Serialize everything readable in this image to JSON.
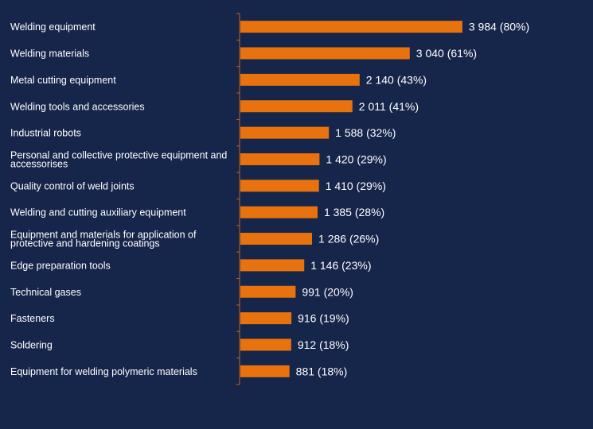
{
  "colors": {
    "background": "#16254a",
    "bar": "#e8730e",
    "axis": "#c0651a",
    "text": "#ffffff"
  },
  "chart_data": {
    "type": "bar",
    "orientation": "horizontal",
    "categories": [
      "Welding equipment",
      "Welding materials",
      "Metal cutting equipment",
      "Welding tools and accessories",
      "Industrial robots",
      "Personal and collective protective equipment and accessorises",
      "Quality control of weld joints",
      "Welding and cutting auxiliary equipment",
      "Equipment and materials for application of protective and hardening coatings",
      "Edge preparation tools",
      "Technical gases",
      "Fasteners",
      "Soldering",
      "Equipment for welding polymeric materials"
    ],
    "category_lines": [
      [
        "Welding equipment"
      ],
      [
        "Welding materials"
      ],
      [
        "Metal cutting equipment"
      ],
      [
        "Welding tools and accessories"
      ],
      [
        "Industrial robots"
      ],
      [
        "Personal and collective protective equipment and",
        "accessorises"
      ],
      [
        "Quality control of weld joints"
      ],
      [
        "Welding and cutting auxiliary equipment"
      ],
      [
        "Equipment and materials for application of",
        "protective and hardening coatings"
      ],
      [
        "Edge preparation tools"
      ],
      [
        "Technical gases"
      ],
      [
        "Fasteners"
      ],
      [
        "Soldering"
      ],
      [
        "Equipment for welding polymeric materials"
      ]
    ],
    "values": [
      3984,
      3040,
      2140,
      2011,
      1588,
      1420,
      1410,
      1385,
      1286,
      1146,
      991,
      916,
      912,
      881
    ],
    "value_labels": [
      "3 984 (80%)",
      "3 040 (61%)",
      "2 140 (43%)",
      "2 011 (41%)",
      "1 588 (32%)",
      "1 420 (29%)",
      "1 410 (29%)",
      "1 385 (28%)",
      "1 286 (26%)",
      "1 146 (23%)",
      "991 (20%)",
      "916 (19%)",
      "912 (18%)",
      "881 (18%)"
    ],
    "xlim": [
      0,
      5000
    ],
    "grid": false,
    "legend": "none"
  }
}
